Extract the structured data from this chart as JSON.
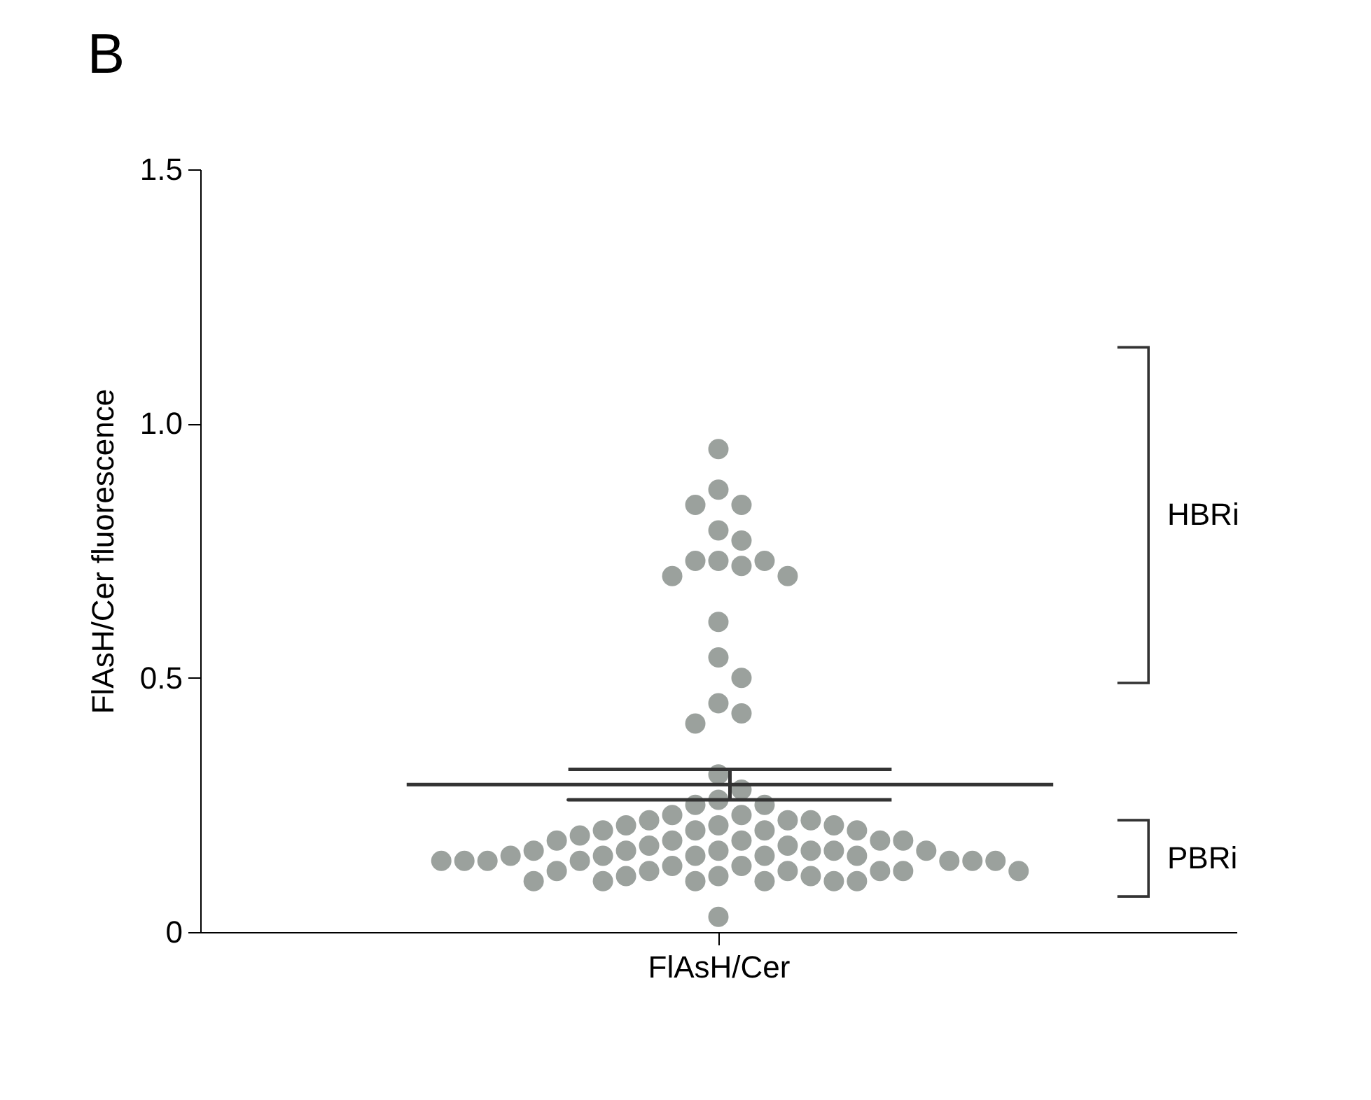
{
  "chart_data": {
    "type": "scatter",
    "title": "B",
    "ylabel": "FlAsH/Cer fluorescence",
    "categories": [
      "FlAsH/Cer"
    ],
    "ylim": [
      0,
      1.5
    ],
    "yticks": [
      {
        "value": 0,
        "label": "0"
      },
      {
        "value": 0.5,
        "label": "0.5"
      },
      {
        "value": 1,
        "label": "1.0"
      },
      {
        "value": 1.5,
        "label": "1.5"
      }
    ],
    "grid": false,
    "series": [
      {
        "marker": "circle",
        "color": "#9ba19d",
        "x": [
          "FlAsH/Cer",
          "FlAsH/Cer",
          "FlAsH/Cer",
          "FlAsH/Cer",
          "FlAsH/Cer",
          "FlAsH/Cer",
          "FlAsH/Cer",
          "FlAsH/Cer",
          "FlAsH/Cer",
          "FlAsH/Cer",
          "FlAsH/Cer",
          "FlAsH/Cer",
          "FlAsH/Cer",
          "FlAsH/Cer",
          "FlAsH/Cer",
          "FlAsH/Cer",
          "FlAsH/Cer",
          "FlAsH/Cer",
          "FlAsH/Cer",
          "FlAsH/Cer",
          "FlAsH/Cer",
          "FlAsH/Cer",
          "FlAsH/Cer",
          "FlAsH/Cer",
          "FlAsH/Cer",
          "FlAsH/Cer",
          "FlAsH/Cer",
          "FlAsH/Cer",
          "FlAsH/Cer",
          "FlAsH/Cer",
          "FlAsH/Cer",
          "FlAsH/Cer",
          "FlAsH/Cer",
          "FlAsH/Cer",
          "FlAsH/Cer",
          "FlAsH/Cer",
          "FlAsH/Cer",
          "FlAsH/Cer",
          "FlAsH/Cer",
          "FlAsH/Cer",
          "FlAsH/Cer",
          "FlAsH/Cer",
          "FlAsH/Cer",
          "FlAsH/Cer",
          "FlAsH/Cer",
          "FlAsH/Cer",
          "FlAsH/Cer",
          "FlAsH/Cer",
          "FlAsH/Cer",
          "FlAsH/Cer",
          "FlAsH/Cer",
          "FlAsH/Cer",
          "FlAsH/Cer",
          "FlAsH/Cer",
          "FlAsH/Cer",
          "FlAsH/Cer",
          "FlAsH/Cer",
          "FlAsH/Cer",
          "FlAsH/Cer",
          "FlAsH/Cer",
          "FlAsH/Cer",
          "FlAsH/Cer",
          "FlAsH/Cer",
          "FlAsH/Cer",
          "FlAsH/Cer",
          "FlAsH/Cer",
          "FlAsH/Cer",
          "FlAsH/Cer",
          "FlAsH/Cer",
          "FlAsH/Cer",
          "FlAsH/Cer",
          "FlAsH/Cer",
          "FlAsH/Cer",
          "FlAsH/Cer",
          "FlAsH/Cer",
          "FlAsH/Cer",
          "FlAsH/Cer",
          "FlAsH/Cer",
          "FlAsH/Cer"
        ],
        "values": [
          0.95,
          0.87,
          0.84,
          0.84,
          0.79,
          0.77,
          0.73,
          0.73,
          0.73,
          0.72,
          0.7,
          0.7,
          0.61,
          0.54,
          0.5,
          0.45,
          0.43,
          0.41,
          0.31,
          0.28,
          0.26,
          0.25,
          0.25,
          0.23,
          0.23,
          0.22,
          0.22,
          0.22,
          0.21,
          0.21,
          0.21,
          0.2,
          0.2,
          0.2,
          0.2,
          0.19,
          0.18,
          0.18,
          0.18,
          0.18,
          0.18,
          0.17,
          0.16,
          0.16,
          0.16,
          0.16,
          0.17,
          0.16,
          0.15,
          0.15,
          0.15,
          0.15,
          0.16,
          0.15,
          0.14,
          0.14,
          0.14,
          0.14,
          0.14,
          0.14,
          0.14,
          0.13,
          0.13,
          0.12,
          0.12,
          0.12,
          0.12,
          0.12,
          0.12,
          0.11,
          0.11,
          0.11,
          0.1,
          0.1,
          0.1,
          0.1,
          0.1,
          0.1,
          0.03
        ]
      }
    ],
    "ref_lines": [
      {
        "axis": "y",
        "value": 0.29,
        "label": null,
        "color": "#333333"
      },
      {
        "axis": "y",
        "value": 0.26,
        "label": null,
        "color": "#333333"
      },
      {
        "axis": "y",
        "value": 0.32,
        "label": null,
        "color": "#333333"
      }
    ],
    "annotations": [
      "HBRi",
      "PBRi"
    ]
  }
}
